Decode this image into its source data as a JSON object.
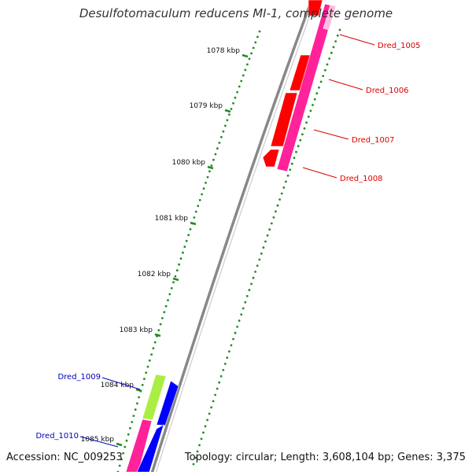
{
  "title": "Desulfotomaculum reducens MI-1, complete genome",
  "accession_text": "Accession: NC_009253",
  "topology_text": "Topology: circular; Length: 3,608,104 bp; Genes: 3,375",
  "kbp_ticks": [
    {
      "label": "1078 kbp"
    },
    {
      "label": "1079 kbp"
    },
    {
      "label": "1080 kbp"
    },
    {
      "label": "1081 kbp"
    },
    {
      "label": "1082 kbp"
    },
    {
      "label": "1083 kbp"
    },
    {
      "label": "1084 kbp"
    },
    {
      "label": "1085 kbp"
    }
  ],
  "gene_labels": [
    {
      "name": "Dred_1005",
      "color": "#dd0000"
    },
    {
      "name": "Dred_1006",
      "color": "#dd0000"
    },
    {
      "name": "Dred_1007",
      "color": "#dd0000"
    },
    {
      "name": "Dred_1008",
      "color": "#dd0000"
    },
    {
      "name": "Dred_1009",
      "color": "#0000bb"
    },
    {
      "name": "Dred_1010",
      "color": "#0000bb"
    }
  ],
  "colors": {
    "forward_cds": "#ff0000",
    "forward_feature": "#ff2299",
    "reverse_cds": "#0000ff",
    "reverse_feature": "#aaee44",
    "ticks": "#228b22",
    "backbone": "#888888"
  }
}
